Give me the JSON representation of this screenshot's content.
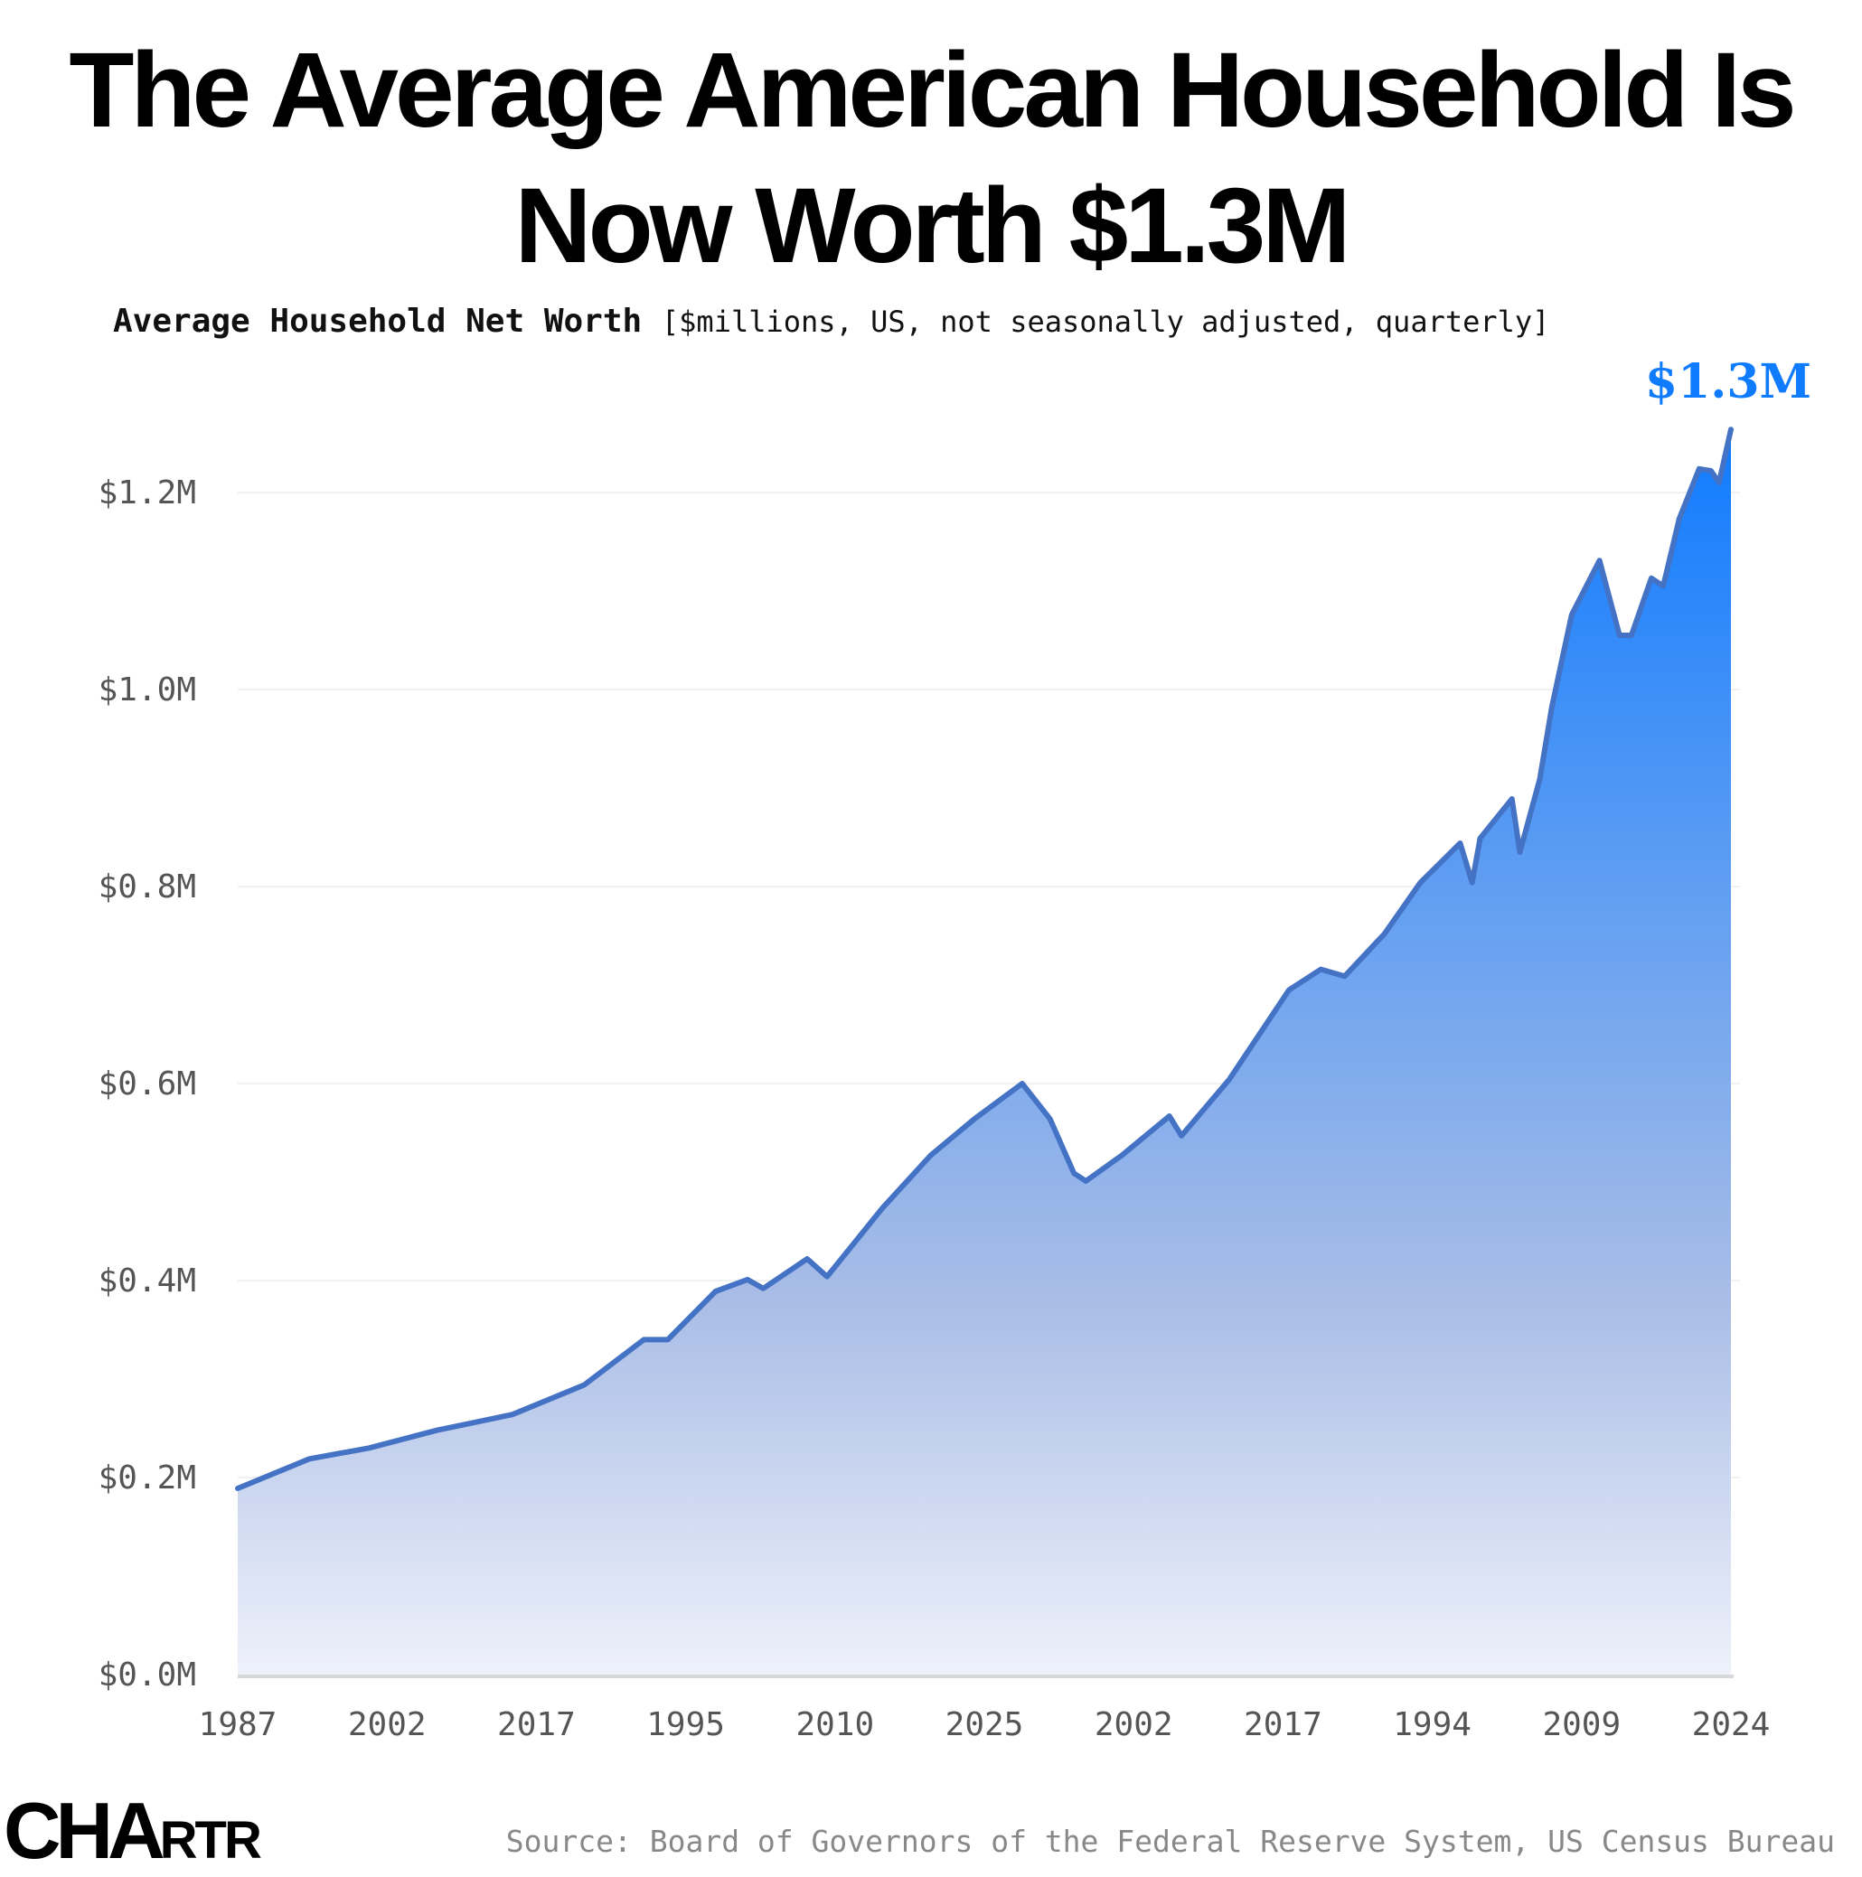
{
  "title_line1": "The Average American Household Is",
  "title_line2": "Now Worth $1.3M",
  "subtitle_bold": "Average Household Net Worth",
  "subtitle_rest": "[$millions, US, not seasonally adjusted, quarterly]",
  "source": "Source: Board of Governors of the Federal Reserve System, US Census Bureau",
  "logo": "CHARTR",
  "colors": {
    "line": "#4472c4",
    "fill_top": "#0f7bff",
    "fill_mid": "#a9bde6",
    "fill_bottom": "#eef1fa",
    "annotation": "#0f7bff"
  },
  "chart_data": {
    "type": "area",
    "title": "Average Household Net Worth",
    "ylabel": "",
    "xlabel": "",
    "unit": "$millions",
    "xlim": [
      1987,
      2024.5
    ],
    "ylim": [
      0,
      1.2
    ],
    "yticks": [
      0.0,
      0.2,
      0.4,
      0.6,
      0.8,
      1.0,
      1.2
    ],
    "ytick_labels": [
      "$0.0M",
      "$0.2M",
      "$0.4M",
      "$0.6M",
      "$0.8M",
      "$1.0M",
      "$1.2M"
    ],
    "xtick_labels": [
      "1987",
      "2002",
      "2017",
      "1995",
      "2010",
      "2025",
      "2002",
      "2017",
      "1994",
      "2009",
      "2024"
    ],
    "grid": "horizontal",
    "annotation": {
      "text": "$1.3M",
      "x": 2024.5,
      "y": 1.264
    },
    "x": [
      1987.0,
      1988.8,
      1990.3,
      1992.0,
      1993.9,
      1995.7,
      1997.2,
      1997.8,
      1999.0,
      1999.8,
      2000.2,
      2001.3,
      2001.8,
      2003.2,
      2004.4,
      2005.5,
      2006.7,
      2007.4,
      2008.0,
      2008.3,
      2009.2,
      2010.4,
      2010.7,
      2011.9,
      2013.4,
      2014.2,
      2014.8,
      2015.8,
      2016.7,
      2017.7,
      2018.0,
      2018.2,
      2019.0,
      2019.2,
      2019.7,
      2020.0,
      2020.5,
      2021.2,
      2021.7,
      2022.0,
      2022.5,
      2022.8,
      2023.2,
      2023.7,
      2024.0,
      2024.2,
      2024.5
    ],
    "values": [
      0.189,
      0.219,
      0.23,
      0.248,
      0.264,
      0.294,
      0.34,
      0.34,
      0.389,
      0.401,
      0.392,
      0.422,
      0.404,
      0.474,
      0.527,
      0.564,
      0.6,
      0.564,
      0.509,
      0.501,
      0.527,
      0.567,
      0.547,
      0.604,
      0.695,
      0.716,
      0.709,
      0.752,
      0.804,
      0.844,
      0.804,
      0.849,
      0.889,
      0.835,
      0.909,
      0.982,
      1.076,
      1.131,
      1.055,
      1.055,
      1.113,
      1.105,
      1.173,
      1.224,
      1.222,
      1.21,
      1.264
    ]
  }
}
